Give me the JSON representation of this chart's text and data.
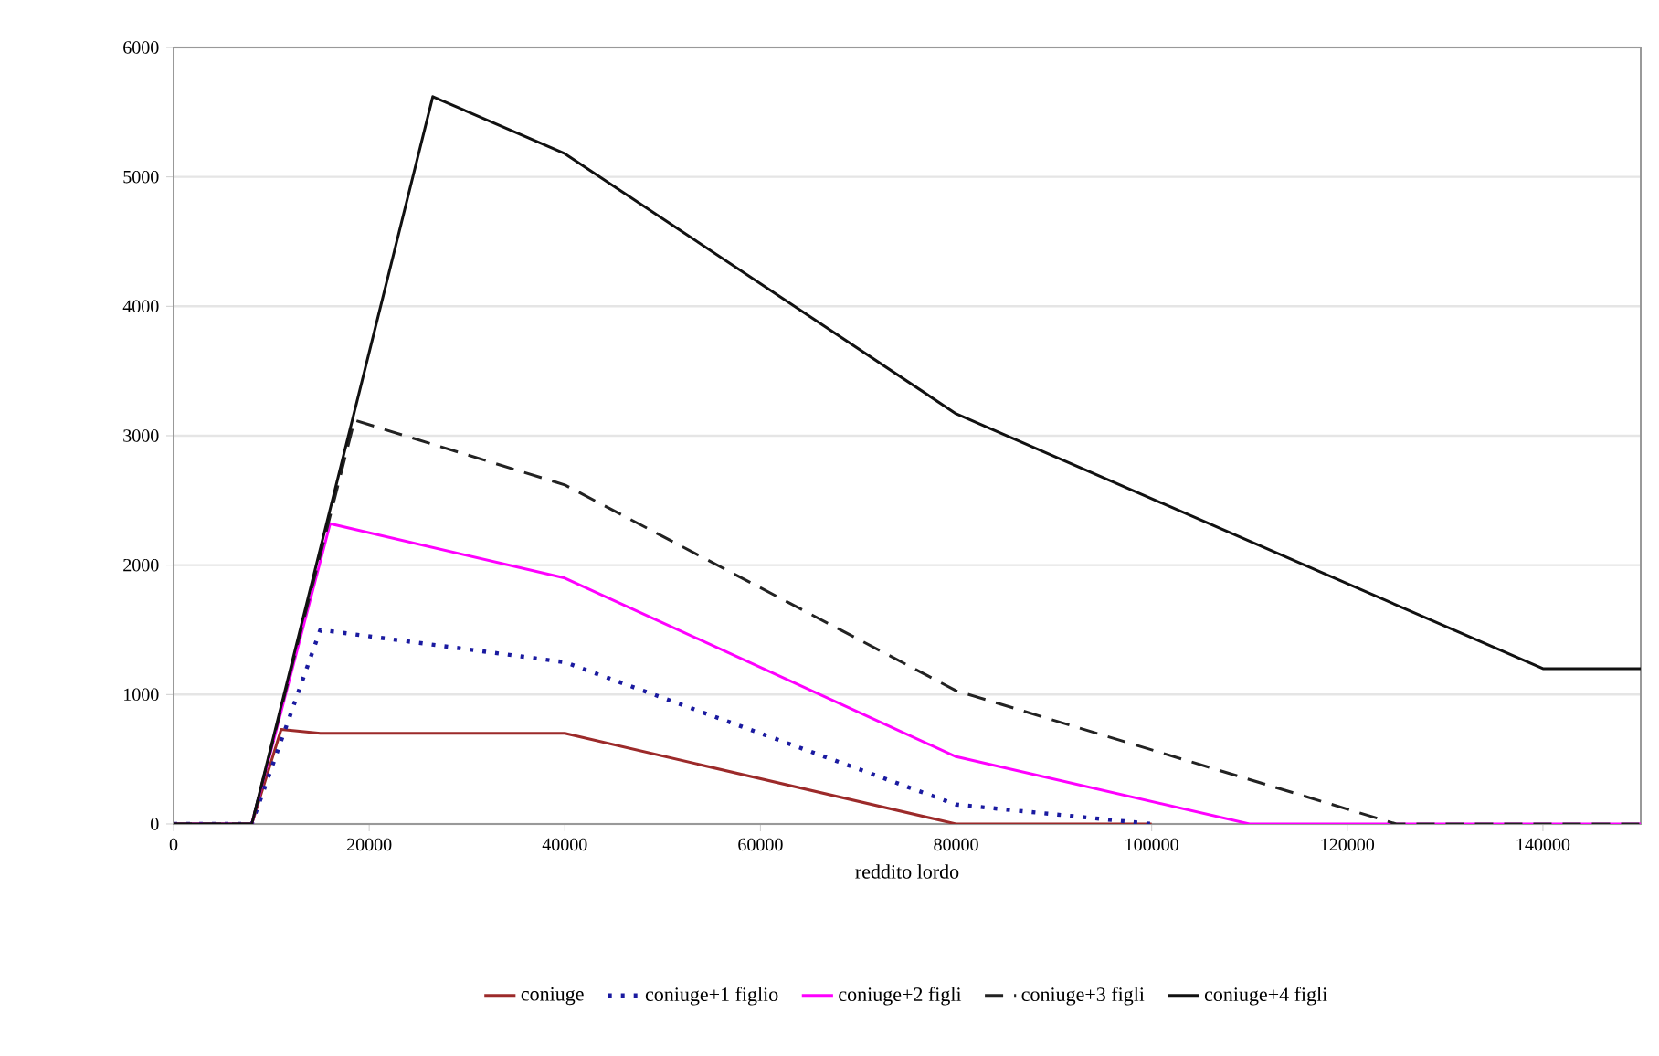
{
  "chart_data": {
    "type": "line",
    "xlabel": "reddito lordo",
    "xlim": [
      0,
      150000
    ],
    "xticks": [
      0,
      20000,
      40000,
      60000,
      80000,
      100000,
      120000,
      140000
    ],
    "ylim": [
      0,
      6000
    ],
    "yticks": [
      0,
      1000,
      2000,
      3000,
      4000,
      5000,
      6000
    ],
    "grid": "y",
    "legend": "bottom",
    "marker": "none",
    "series": [
      {
        "name": "coniuge",
        "color": "#9c2a2a",
        "line_style": "solid",
        "x": [
          0,
          8000,
          11000,
          15000,
          40000,
          80000,
          100000
        ],
        "values": [
          0,
          0,
          730,
          700,
          700,
          0,
          0
        ]
      },
      {
        "name": "coniuge+1 figlio",
        "color": "#1a1aa0",
        "line_style": "dotted",
        "x": [
          0,
          8000,
          15000,
          40000,
          80000,
          100000
        ],
        "values": [
          0,
          0,
          1500,
          1250,
          150,
          0
        ]
      },
      {
        "name": "coniuge+2 figli",
        "color": "#ff00ff",
        "line_style": "solid",
        "x": [
          0,
          8000,
          16000,
          40000,
          80000,
          110000,
          150000
        ],
        "values": [
          0,
          0,
          2320,
          1900,
          520,
          0,
          0
        ]
      },
      {
        "name": "coniuge+3 figli",
        "color": "#222222",
        "line_style": "dashed",
        "x": [
          0,
          8000,
          18500,
          40000,
          80000,
          125000,
          150000
        ],
        "values": [
          0,
          0,
          3120,
          2620,
          1030,
          0,
          0
        ]
      },
      {
        "name": "coniuge+4 figli",
        "color": "#111111",
        "line_style": "solid",
        "x": [
          0,
          8000,
          26500,
          40000,
          80000,
          140000,
          150000
        ],
        "values": [
          0,
          0,
          5620,
          5180,
          3170,
          1200,
          1200
        ]
      }
    ]
  }
}
